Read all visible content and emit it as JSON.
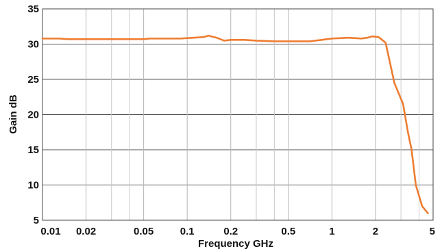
{
  "chart_data": {
    "type": "line",
    "title": "",
    "xlabel": "Frequency GHz",
    "ylabel": "Gain dB",
    "x_scale": "log",
    "xlim": [
      0.01,
      5
    ],
    "ylim": [
      5,
      35
    ],
    "grid": true,
    "x_ticks": [
      {
        "value": 0.01,
        "label": "0.01"
      },
      {
        "value": 0.02,
        "label": "0.02"
      },
      {
        "value": 0.05,
        "label": "0.05"
      },
      {
        "value": 0.1,
        "label": "0.1"
      },
      {
        "value": 0.2,
        "label": "0.2"
      },
      {
        "value": 0.5,
        "label": "0.5"
      },
      {
        "value": 1,
        "label": "1"
      },
      {
        "value": 2,
        "label": "2"
      },
      {
        "value": 5,
        "label": "5"
      }
    ],
    "x_minor_grid": [
      0.03,
      0.04,
      0.3,
      0.4,
      3,
      4
    ],
    "y_ticks": [
      {
        "value": 5,
        "label": "5"
      },
      {
        "value": 10,
        "label": "10"
      },
      {
        "value": 15,
        "label": "15"
      },
      {
        "value": 20,
        "label": "20"
      },
      {
        "value": 25,
        "label": "25"
      },
      {
        "value": 30,
        "label": "30"
      },
      {
        "value": 35,
        "label": "35"
      }
    ],
    "series": [
      {
        "name": "",
        "color": "#ee7d31",
        "x": [
          0.01,
          0.013,
          0.015,
          0.02,
          0.03,
          0.05,
          0.055,
          0.07,
          0.09,
          0.11,
          0.13,
          0.14,
          0.16,
          0.18,
          0.2,
          0.25,
          0.3,
          0.4,
          0.5,
          0.7,
          0.85,
          1.0,
          1.3,
          1.6,
          1.75,
          1.9,
          2.1,
          2.35,
          2.7,
          3.1,
          3.35,
          3.55,
          3.8,
          4.2,
          4.6
        ],
        "y": [
          30.8,
          30.8,
          30.7,
          30.7,
          30.7,
          30.7,
          30.8,
          30.8,
          30.8,
          30.9,
          31.0,
          31.2,
          30.9,
          30.5,
          30.6,
          30.6,
          30.5,
          30.4,
          30.4,
          30.4,
          30.6,
          30.8,
          30.9,
          30.8,
          30.9,
          31.1,
          31.0,
          30.2,
          24.5,
          21.5,
          17.5,
          15.0,
          10.0,
          7.0,
          6.0
        ]
      }
    ]
  }
}
